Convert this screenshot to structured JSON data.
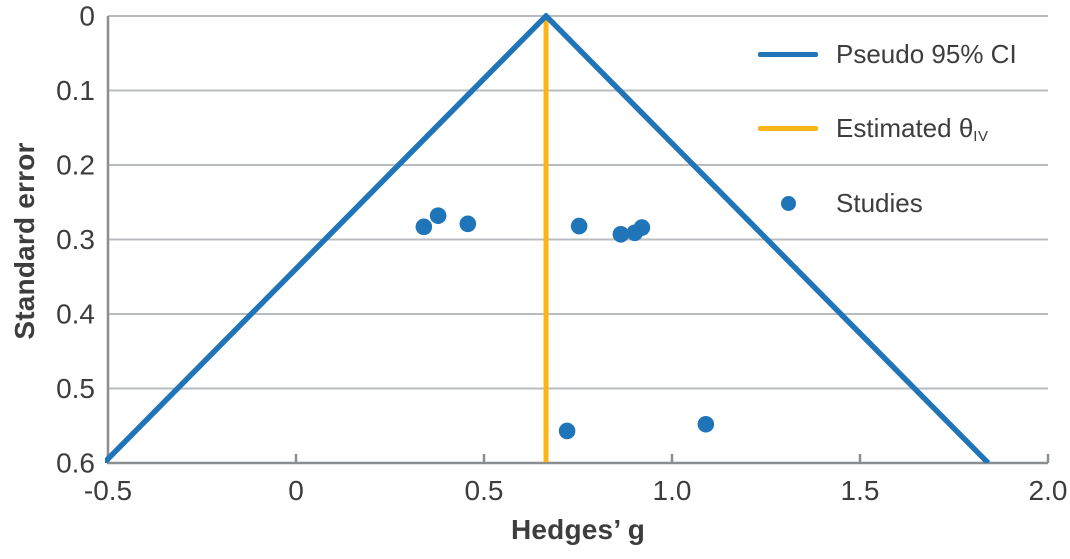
{
  "chart_data": {
    "type": "scatter",
    "subtype": "funnel-plot",
    "title": "",
    "xlabel": "Hedges’ g",
    "ylabel": "Standard error",
    "xlim": [
      -0.5,
      2.0
    ],
    "ylim": [
      0,
      0.6
    ],
    "y_axis_inverted_downward": true,
    "grid": true,
    "x_ticks": {
      "values": [
        -0.5,
        0,
        0.5,
        1.0,
        1.5,
        2.0
      ],
      "labels": [
        "-0.5",
        "0",
        "0.5",
        "1.0",
        "1.5",
        "2.0"
      ]
    },
    "y_ticks": {
      "values": [
        0,
        0.1,
        0.2,
        0.3,
        0.4,
        0.5,
        0.6
      ],
      "labels": [
        "0",
        "0.1",
        "0.2",
        "0.3",
        "0.4",
        "0.5",
        "0.6"
      ]
    },
    "estimate_theta_iv": 0.665,
    "ci_z": 1.96,
    "pseudo_ci_range_at_max_se": [
      -0.51,
      1.84
    ],
    "points": [
      {
        "g": 0.34,
        "se": 0.283
      },
      {
        "g": 0.378,
        "se": 0.268
      },
      {
        "g": 0.457,
        "se": 0.279
      },
      {
        "g": 0.753,
        "se": 0.282
      },
      {
        "g": 0.864,
        "se": 0.293
      },
      {
        "g": 0.901,
        "se": 0.291
      },
      {
        "g": 0.92,
        "se": 0.284
      },
      {
        "g": 0.721,
        "se": 0.557
      },
      {
        "g": 1.09,
        "se": 0.548
      }
    ],
    "legend": {
      "position": "top-right",
      "items": [
        {
          "swatch": "line",
          "color": "#2074b8",
          "label": "Pseudo 95% CI"
        },
        {
          "swatch": "line",
          "color": "#fdb515",
          "label": "Estimated θ",
          "sub": "IV"
        },
        {
          "swatch": "dot",
          "color": "#2074b8",
          "label": "Studies"
        }
      ]
    },
    "colors": {
      "ci_line": "#2074b8",
      "estimate_line": "#fdb515",
      "point": "#2074b8",
      "grid": "#b9bcbf",
      "axis": "#8b8e91",
      "text": "#3d3d3d"
    }
  }
}
